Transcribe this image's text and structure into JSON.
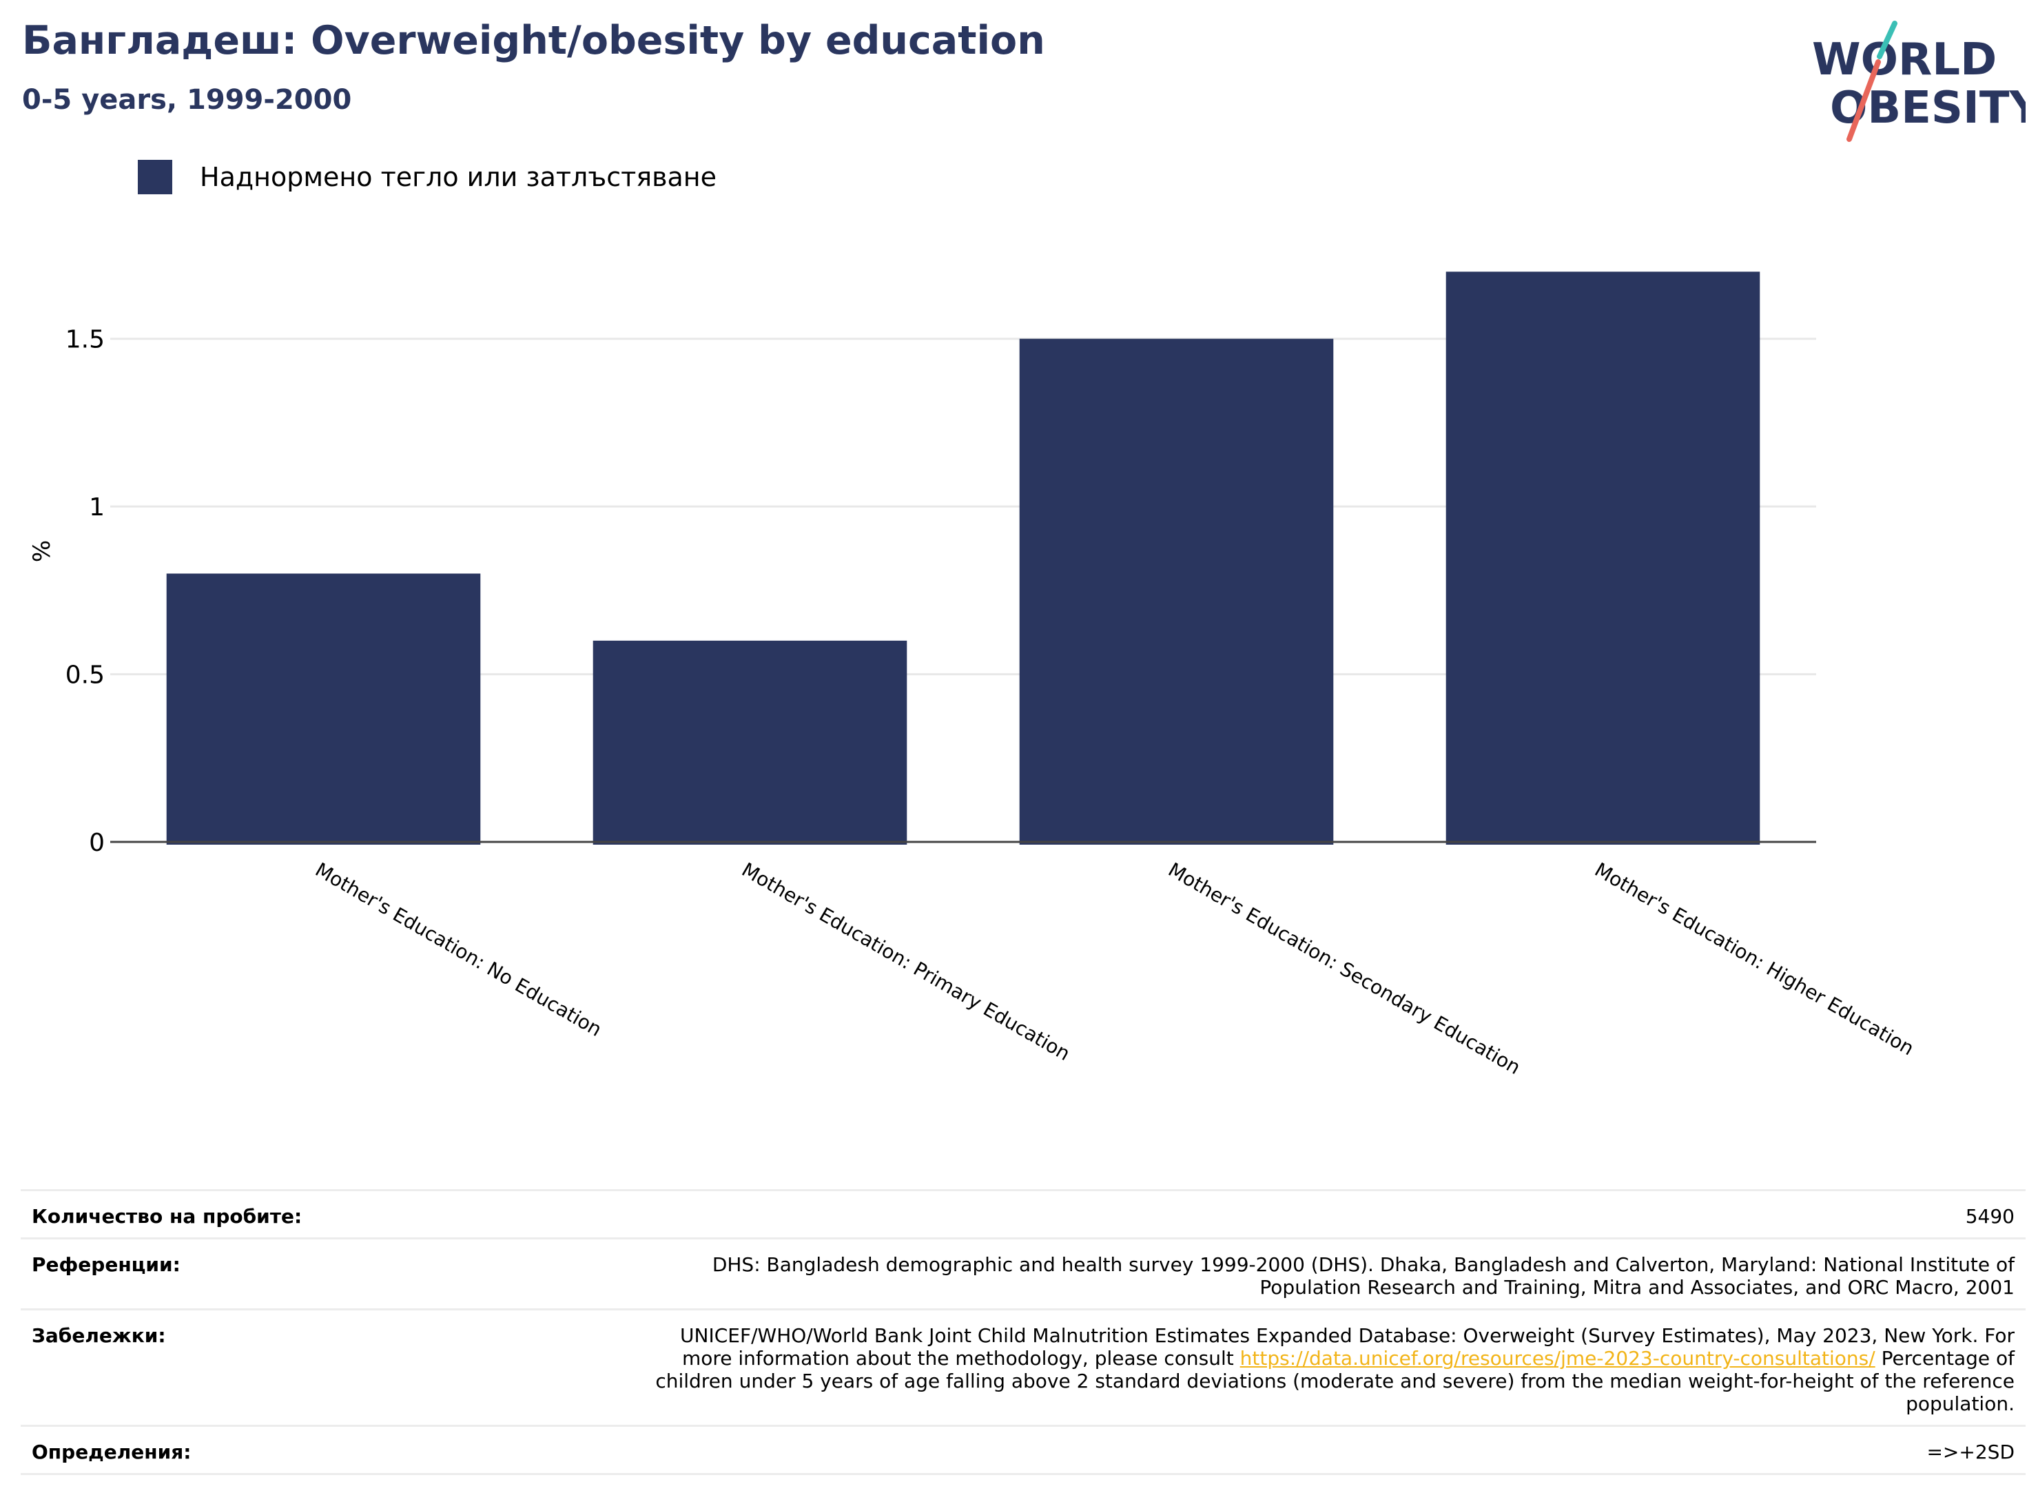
{
  "header": {
    "title": "Бангладеш: Overweight/obesity by education",
    "subtitle": "0-5 years, 1999-2000"
  },
  "logo": {
    "line1": "WORLD",
    "line2": "OBESITY",
    "colors": {
      "text": "#2a365f",
      "slash_top": "#3bbfb5",
      "slash_bottom": "#e8665a"
    }
  },
  "legend": {
    "label": "Наднормено тегло или затлъстяване",
    "color": "#2a365f"
  },
  "chart_data": {
    "type": "bar",
    "categories": [
      "Mother's Education: No Education",
      "Mother's Education: Primary Education",
      "Mother's Education: Secondary Education",
      "Mother's Education: Higher Education"
    ],
    "series": [
      {
        "name": "Наднормено тегло или затлъстяване",
        "values": [
          0.8,
          0.6,
          1.5,
          1.7
        ],
        "color": "#2a365f"
      }
    ],
    "yticks": [
      0,
      0.5,
      1,
      1.5
    ],
    "ytick_labels": [
      "0",
      "0.5",
      "1",
      "1.5"
    ],
    "ylim": [
      0,
      1.75
    ],
    "ylabel": "%",
    "xlabel": "",
    "grid": true,
    "legend_position": "top-left"
  },
  "info": {
    "sample_size": {
      "label": "Количество на пробите:",
      "value": "5490"
    },
    "references": {
      "label": "Референции:",
      "line1": "DHS: Bangladesh demographic and health survey 1999-2000 (DHS). Dhaka, Bangladesh and Calverton, Maryland: National Institute of",
      "line2": "Population Research and Training, Mitra and Associates, and ORC Macro, 2001"
    },
    "notes": {
      "label": "Забележки:",
      "line1": "UNICEF/WHO/World Bank Joint Child Malnutrition Estimates Expanded Database: Overweight (Survey Estimates), May 2023, New York. For",
      "line2_before": "more information about the methodology, please consult ",
      "link": "https://data.unicef.org/resources/jme-2023-country-consultations/",
      "line2_after": " Percentage of",
      "line3": "children under 5 years of age falling above 2 standard deviations (moderate and severe) from the median weight-for-height of the reference",
      "line4": "population."
    },
    "definitions": {
      "label": "Определения:",
      "value": "=>+2SD"
    }
  }
}
